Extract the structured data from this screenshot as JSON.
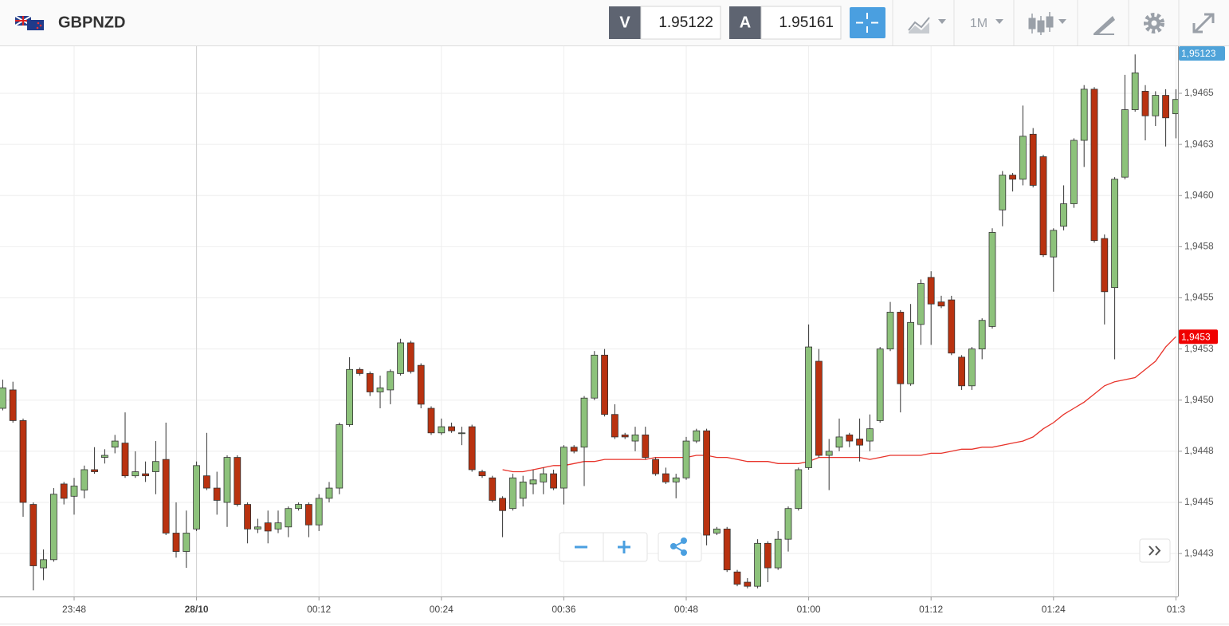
{
  "header": {
    "symbol": "GBPNZD",
    "bid_label": "V",
    "bid": "1.95122",
    "ask_label": "A",
    "ask": "1.95161",
    "timeframe": "1M"
  },
  "chart_data": {
    "type": "candlestick",
    "categories": [
      null,
      null,
      null,
      null,
      null,
      null,
      null,
      "23:48",
      null,
      null,
      null,
      null,
      null,
      null,
      null,
      null,
      null,
      null,
      null,
      "28/10",
      null,
      null,
      null,
      null,
      null,
      null,
      null,
      null,
      null,
      null,
      null,
      "00:12",
      null,
      null,
      null,
      null,
      null,
      null,
      null,
      null,
      null,
      null,
      null,
      "00:24",
      null,
      null,
      null,
      null,
      null,
      null,
      null,
      null,
      null,
      null,
      null,
      "00:36",
      null,
      null,
      null,
      null,
      null,
      null,
      null,
      null,
      null,
      null,
      null,
      "00:48",
      null,
      null,
      null,
      null,
      null,
      null,
      null,
      null,
      null,
      null,
      null,
      "01:00",
      null,
      null,
      null,
      null,
      null,
      null,
      null,
      null,
      null,
      null,
      null,
      "01:12",
      null,
      null,
      null,
      null,
      null,
      null,
      null,
      null,
      null,
      null,
      null,
      "01:24",
      null,
      null,
      null,
      null,
      null,
      null,
      null,
      null,
      null,
      null,
      null,
      "01:3"
    ],
    "open": [
      1.94496,
      1.94505,
      1.9449,
      1.94449,
      1.94418,
      1.94422,
      1.94459,
      1.94453,
      1.94456,
      1.94466,
      1.94472,
      1.94477,
      1.94479,
      1.94463,
      1.94464,
      1.94465,
      1.94471,
      1.94435,
      1.94426,
      1.94437,
      1.94463,
      1.94457,
      1.9445,
      1.94472,
      1.94449,
      1.94437,
      1.9444,
      1.94437,
      1.94438,
      1.94447,
      1.94449,
      1.94439,
      1.94452,
      1.94457,
      1.94488,
      1.94515,
      1.94513,
      1.94504,
      1.94505,
      1.94513,
      1.94528,
      1.94517,
      1.94496,
      1.94484,
      1.94487,
      1.94484,
      1.94487,
      1.94465,
      1.94462,
      1.94452,
      1.94447,
      1.94452,
      1.94459,
      1.9446,
      1.94464,
      1.94457,
      1.94477,
      1.94477,
      1.94501,
      1.94522,
      1.94493,
      1.94483,
      1.9448,
      1.94483,
      1.94471,
      1.94464,
      1.9446,
      1.94462,
      1.9448,
      1.94485,
      1.94435,
      1.94437,
      1.94416,
      1.94411,
      1.94409,
      1.9443,
      1.94418,
      1.94432,
      1.94447,
      1.94467,
      1.94519,
      1.94473,
      1.94477,
      1.94483,
      1.94481,
      1.9448,
      1.9449,
      1.94525,
      1.94543,
      1.94508,
      1.94537,
      1.9456,
      1.94548,
      1.94549,
      1.94521,
      1.94507,
      1.94525,
      1.94536,
      1.94593,
      1.9461,
      1.94608,
      1.9463,
      1.94619,
      1.9457,
      1.94585,
      1.94596,
      1.94627,
      1.94652,
      1.94579,
      1.94555,
      1.94609,
      1.94642,
      1.94651,
      1.94639,
      1.94649,
      1.9464
    ],
    "high": [
      1.9451,
      1.94509,
      1.94491,
      1.9445,
      1.94427,
      1.94457,
      1.9446,
      1.94462,
      1.94468,
      1.94477,
      1.94476,
      1.94483,
      1.94494,
      1.94475,
      1.9447,
      1.9448,
      1.94489,
      1.9445,
      1.94446,
      1.9447,
      1.94484,
      1.94465,
      1.94473,
      1.94473,
      1.9445,
      1.94442,
      1.94446,
      1.94446,
      1.94448,
      1.9445,
      1.9445,
      1.94454,
      1.9446,
      1.94489,
      1.94521,
      1.94516,
      1.94514,
      1.94512,
      1.94515,
      1.9453,
      1.94529,
      1.94518,
      1.94497,
      1.94491,
      1.94489,
      1.94487,
      1.94488,
      1.94466,
      1.94463,
      1.94453,
      1.94464,
      1.94463,
      1.94466,
      1.94467,
      1.94466,
      1.94478,
      1.94478,
      1.94502,
      1.94524,
      1.94525,
      1.94498,
      1.94484,
      1.94487,
      1.94487,
      1.94472,
      1.94467,
      1.94464,
      1.94482,
      1.94486,
      1.94486,
      1.94438,
      1.94438,
      1.94417,
      1.94413,
      1.94432,
      1.94431,
      1.94436,
      1.94448,
      1.94467,
      1.94537,
      1.94525,
      1.94481,
      1.94491,
      1.94484,
      1.94491,
      1.94493,
      1.94526,
      1.94548,
      1.94544,
      1.94547,
      1.94559,
      1.94563,
      1.94551,
      1.94551,
      1.94522,
      1.94526,
      1.9454,
      1.94584,
      1.94612,
      1.94611,
      1.94644,
      1.94633,
      1.9462,
      1.94584,
      1.94605,
      1.94628,
      1.94654,
      1.94653,
      1.94581,
      1.94609,
      1.94659,
      1.94669,
      1.94654,
      1.94651,
      1.94652,
      1.94652
    ],
    "low": [
      1.94495,
      1.94489,
      1.94443,
      1.94407,
      1.94412,
      1.94421,
      1.94449,
      1.94444,
      1.94452,
      1.94464,
      1.94469,
      1.94474,
      1.94462,
      1.94462,
      1.9446,
      1.94454,
      1.94434,
      1.94423,
      1.94418,
      1.94436,
      1.94456,
      1.94444,
      1.94438,
      1.94448,
      1.9443,
      1.94435,
      1.9443,
      1.94435,
      1.94433,
      1.94446,
      1.94433,
      1.94436,
      1.9445,
      1.94454,
      1.94487,
      1.94512,
      1.94502,
      1.94496,
      1.94498,
      1.94512,
      1.94513,
      1.94496,
      1.94483,
      1.94483,
      1.94484,
      1.94478,
      1.94465,
      1.94462,
      1.9445,
      1.94433,
      1.94446,
      1.94448,
      1.94454,
      1.94454,
      1.94456,
      1.94449,
      1.94474,
      1.94458,
      1.945,
      1.94492,
      1.94481,
      1.94481,
      1.94475,
      1.94471,
      1.94463,
      1.94459,
      1.94452,
      1.94461,
      1.94479,
      1.94429,
      1.94434,
      1.94416,
      1.94409,
      1.94408,
      1.94408,
      1.94411,
      1.94417,
      1.94426,
      1.94446,
      1.94466,
      1.94472,
      1.94456,
      1.94475,
      1.94477,
      1.9447,
      1.94475,
      1.94489,
      1.94524,
      1.94494,
      1.94507,
      1.94527,
      1.94527,
      1.94545,
      1.94522,
      1.94505,
      1.94505,
      1.9452,
      1.94535,
      1.94585,
      1.94602,
      1.94605,
      1.94604,
      1.9457,
      1.94553,
      1.94583,
      1.94594,
      1.94614,
      1.94577,
      1.94537,
      1.9452,
      1.94608,
      1.94641,
      1.94627,
      1.94634,
      1.94624,
      1.94628
    ],
    "close": [
      1.94506,
      1.9449,
      1.9445,
      1.94419,
      1.94422,
      1.94454,
      1.94452,
      1.94458,
      1.94466,
      1.94465,
      1.94473,
      1.9448,
      1.94463,
      1.94465,
      1.94463,
      1.9447,
      1.94435,
      1.94426,
      1.94435,
      1.94468,
      1.94457,
      1.94451,
      1.94472,
      1.94449,
      1.94437,
      1.94438,
      1.94436,
      1.9444,
      1.94447,
      1.94449,
      1.94439,
      1.94452,
      1.94457,
      1.94488,
      1.94515,
      1.94513,
      1.94504,
      1.94506,
      1.94514,
      1.94528,
      1.94514,
      1.94498,
      1.94484,
      1.94487,
      1.94485,
      1.94484,
      1.94466,
      1.94463,
      1.94451,
      1.94446,
      1.94462,
      1.9446,
      1.94461,
      1.94464,
      1.94457,
      1.94477,
      1.94475,
      1.94501,
      1.94522,
      1.94493,
      1.94482,
      1.94482,
      1.94483,
      1.94472,
      1.94464,
      1.9446,
      1.94462,
      1.9448,
      1.94485,
      1.94434,
      1.94437,
      1.94417,
      1.9441,
      1.94409,
      1.9443,
      1.94418,
      1.94432,
      1.94447,
      1.94466,
      1.94526,
      1.94473,
      1.94475,
      1.94482,
      1.9448,
      1.94478,
      1.94486,
      1.94525,
      1.94543,
      1.94508,
      1.94538,
      1.94557,
      1.94547,
      1.94546,
      1.94523,
      1.94507,
      1.94525,
      1.94539,
      1.94582,
      1.9461,
      1.94608,
      1.94629,
      1.94605,
      1.94571,
      1.94583,
      1.94596,
      1.94627,
      1.94652,
      1.94578,
      1.94553,
      1.94608,
      1.94642,
      1.9466,
      1.94639,
      1.94649,
      1.94638,
      1.94647
    ],
    "up_color": "#8dc27b",
    "down_color": "#b93210",
    "overlay": {
      "color": "#e8332a",
      "values": [
        null,
        null,
        null,
        null,
        null,
        null,
        null,
        null,
        null,
        null,
        null,
        null,
        null,
        null,
        null,
        null,
        null,
        null,
        null,
        null,
        null,
        null,
        null,
        null,
        null,
        null,
        null,
        null,
        null,
        null,
        null,
        null,
        null,
        null,
        null,
        null,
        null,
        null,
        null,
        null,
        null,
        null,
        null,
        null,
        null,
        null,
        null,
        null,
        null,
        1.94466,
        1.94465,
        1.94465,
        1.94466,
        1.94467,
        1.94468,
        1.94468,
        1.94469,
        1.9447,
        1.9447,
        1.94471,
        1.94471,
        1.94471,
        1.94471,
        1.94471,
        1.94472,
        1.94472,
        1.94472,
        1.94472,
        1.94473,
        1.94473,
        1.94472,
        1.94472,
        1.94471,
        1.9447,
        1.9447,
        1.9447,
        1.94469,
        1.94469,
        1.94469,
        1.9447,
        1.94472,
        1.94472,
        1.94472,
        1.94472,
        1.94472,
        1.94471,
        1.94472,
        1.94473,
        1.94473,
        1.94473,
        1.94473,
        1.94474,
        1.94474,
        1.94475,
        1.94476,
        1.94476,
        1.94477,
        1.94477,
        1.94478,
        1.94479,
        1.9448,
        1.94482,
        1.94486,
        1.94489,
        1.94493,
        1.94496,
        1.94499,
        1.94503,
        1.94507,
        1.94509,
        1.9451,
        1.94511,
        1.94515,
        1.94519,
        1.94526,
        1.94531
      ]
    },
    "price_tags": [
      {
        "label": "1,95123",
        "color": "#4fa3d9"
      },
      {
        "label": "1,9453",
        "color": "#f00000"
      }
    ],
    "ylim": [
      1.94404,
      1.94673
    ],
    "yticks": [
      {
        "value": 1.9465,
        "label": "1,9465"
      },
      {
        "value": 1.94625,
        "label": "1,9463"
      },
      {
        "value": 1.946,
        "label": "1,9460"
      },
      {
        "value": 1.94575,
        "label": "1,9458"
      },
      {
        "value": 1.9455,
        "label": "1,9455"
      },
      {
        "value": 1.94525,
        "label": "1,9453"
      },
      {
        "value": 1.945,
        "label": "1,9450"
      },
      {
        "value": 1.94475,
        "label": "1,9448"
      },
      {
        "value": 1.9445,
        "label": "1,9445"
      },
      {
        "value": 1.94425,
        "label": "1,9443"
      }
    ],
    "grid": true
  }
}
